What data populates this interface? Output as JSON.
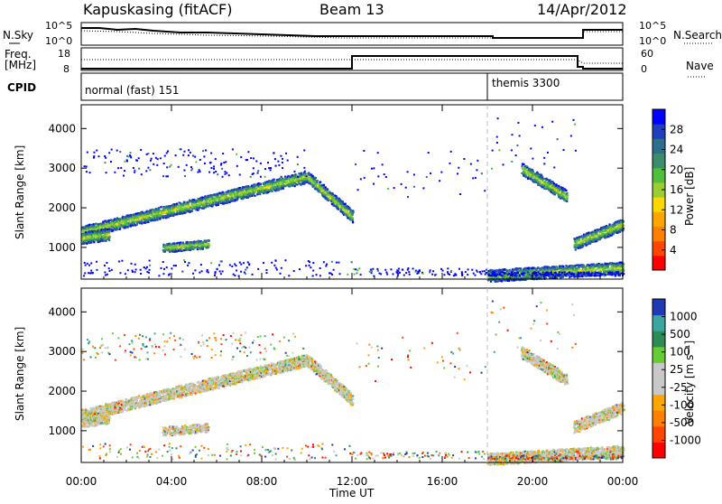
{
  "header": {
    "station": "Kapuskasing (fitACF)",
    "beam": "Beam 13",
    "date": "14/Apr/2012"
  },
  "noise_panel": {
    "left_label": "N.Sky",
    "right_label": "N.Search",
    "left_ticks": [
      "10^5",
      "10^0"
    ],
    "right_ticks": [
      "10^5",
      "10^0"
    ]
  },
  "freq_panel": {
    "left_label_1": "Freq.",
    "left_label_2": "[MHz]",
    "right_label": "Nave",
    "left_ticks": [
      "18",
      "8"
    ],
    "right_ticks": [
      "60",
      "0"
    ]
  },
  "cpid_panel": {
    "label": "CPID",
    "segments": [
      {
        "start_ut": 0,
        "name": "normal (fast) 151"
      },
      {
        "start_ut": 18,
        "name": "themis 3300"
      }
    ]
  },
  "chart_data": [
    {
      "type": "heatmap",
      "name": "Power panel",
      "xlabel": "",
      "ylabel": "Slant Range [km]",
      "x_unit": "hours UT",
      "xlim": [
        0,
        24
      ],
      "ylim": [
        200,
        4600
      ],
      "y_ticks": [
        "4000",
        "3000",
        "2000",
        "1000"
      ],
      "colorbar": {
        "label": "Power [dB]",
        "ticks": [
          "28",
          "24",
          "20",
          "16",
          "12",
          "8",
          "4"
        ],
        "colors": [
          "#0000ff",
          "#1f3fbf",
          "#2d6e8c",
          "#3c8c6e",
          "#4fbf3c",
          "#9acd32",
          "#ffd700",
          "#ffa500",
          "#ff7f00",
          "#ff4500",
          "#ff0000"
        ]
      },
      "features": [
        {
          "desc": "backscatter band",
          "ut_start": 0,
          "ut_end": 10,
          "range_start_km": 1400,
          "range_end_km": 2800
        },
        {
          "desc": "descending band",
          "ut_start": 10,
          "ut_end": 12,
          "range_start_km": 2800,
          "range_end_km": 1800
        },
        {
          "desc": "late band",
          "ut_start": 19.5,
          "ut_end": 21.5,
          "range_start_km": 3000,
          "range_end_km": 2300
        },
        {
          "desc": "late low band",
          "ut_start": 21.8,
          "ut_end": 24,
          "range_start_km": 1100,
          "range_end_km": 1600
        },
        {
          "desc": "near ground scatter",
          "ut_start": 18,
          "ut_end": 24,
          "range_start_km": 300,
          "range_end_km": 500
        }
      ]
    },
    {
      "type": "heatmap",
      "name": "Velocity panel",
      "xlabel": "Time UT",
      "ylabel": "Slant Range [km]",
      "x_unit": "hours UT",
      "xlim": [
        0,
        24
      ],
      "ylim": [
        200,
        4600
      ],
      "x_ticks": [
        "00:00",
        "04:00",
        "08:00",
        "12:00",
        "16:00",
        "20:00",
        "00:00"
      ],
      "y_ticks": [
        "4000",
        "3000",
        "2000",
        "1000"
      ],
      "colorbar": {
        "label": "Velocity [m s⁻¹]",
        "ticks": [
          "1000",
          "500",
          "100",
          "25",
          "-25",
          "-100",
          "-500",
          "-1000"
        ],
        "colors": [
          "#2039b5",
          "#3aa6a0",
          "#2e8b57",
          "#66cc33",
          "#c8c8c8",
          "#c8c8c8",
          "#ffa500",
          "#ff7f00",
          "#ff4500",
          "#ff0000"
        ]
      }
    }
  ]
}
